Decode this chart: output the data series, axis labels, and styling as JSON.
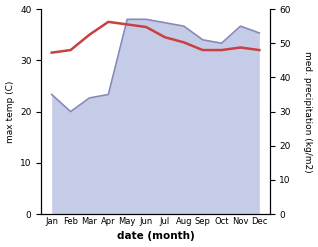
{
  "months": [
    "Jan",
    "Feb",
    "Mar",
    "Apr",
    "May",
    "Jun",
    "Jul",
    "Aug",
    "Sep",
    "Oct",
    "Nov",
    "Dec"
  ],
  "temp_max": [
    31.5,
    32.0,
    35.0,
    37.5,
    37.0,
    36.5,
    34.5,
    33.5,
    32.0,
    32.0,
    32.5,
    32.0
  ],
  "precipitation": [
    35,
    30,
    34,
    35,
    57,
    57,
    56,
    55,
    51,
    50,
    55,
    53
  ],
  "temp_color": "#c94040",
  "precip_line_color": "#8888bb",
  "precip_fill_color": "#c5cce8",
  "background_color": "#ffffff",
  "ylabel_left": "max temp (C)",
  "ylabel_right": "med. precipitation (kg/m2)",
  "xlabel": "date (month)",
  "ylim_left": [
    0,
    40
  ],
  "ylim_right": [
    0,
    60
  ],
  "yticks_left": [
    0,
    10,
    20,
    30,
    40
  ],
  "yticks_right": [
    0,
    10,
    20,
    30,
    40,
    50,
    60
  ]
}
